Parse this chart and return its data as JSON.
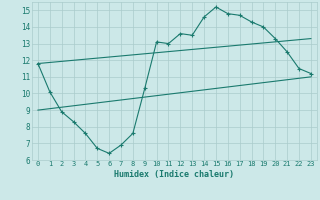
{
  "xlabel": "Humidex (Indice chaleur)",
  "xlim": [
    -0.5,
    23.5
  ],
  "ylim": [
    6,
    15.5
  ],
  "xticks": [
    0,
    1,
    2,
    3,
    4,
    5,
    6,
    7,
    8,
    9,
    10,
    11,
    12,
    13,
    14,
    15,
    16,
    17,
    18,
    19,
    20,
    21,
    22,
    23
  ],
  "yticks": [
    6,
    7,
    8,
    9,
    10,
    11,
    12,
    13,
    14,
    15
  ],
  "bg_color": "#cce8e8",
  "grid_color": "#aacccc",
  "line_color": "#1a7a6e",
  "line1_x": [
    0,
    1,
    2,
    3,
    4,
    5,
    6,
    7,
    8,
    9,
    10,
    11,
    12,
    13,
    14,
    15,
    16,
    17,
    18,
    19,
    20,
    21,
    22,
    23
  ],
  "line1_y": [
    11.8,
    10.1,
    8.9,
    8.3,
    7.6,
    6.7,
    6.4,
    6.9,
    7.6,
    10.3,
    13.1,
    13.0,
    13.6,
    13.5,
    14.6,
    15.2,
    14.8,
    14.7,
    14.3,
    14.0,
    13.3,
    12.5,
    11.5,
    11.2
  ],
  "line2_x": [
    0,
    23
  ],
  "line2_y": [
    11.8,
    13.3
  ],
  "line3_x": [
    0,
    23
  ],
  "line3_y": [
    9.0,
    11.0
  ]
}
